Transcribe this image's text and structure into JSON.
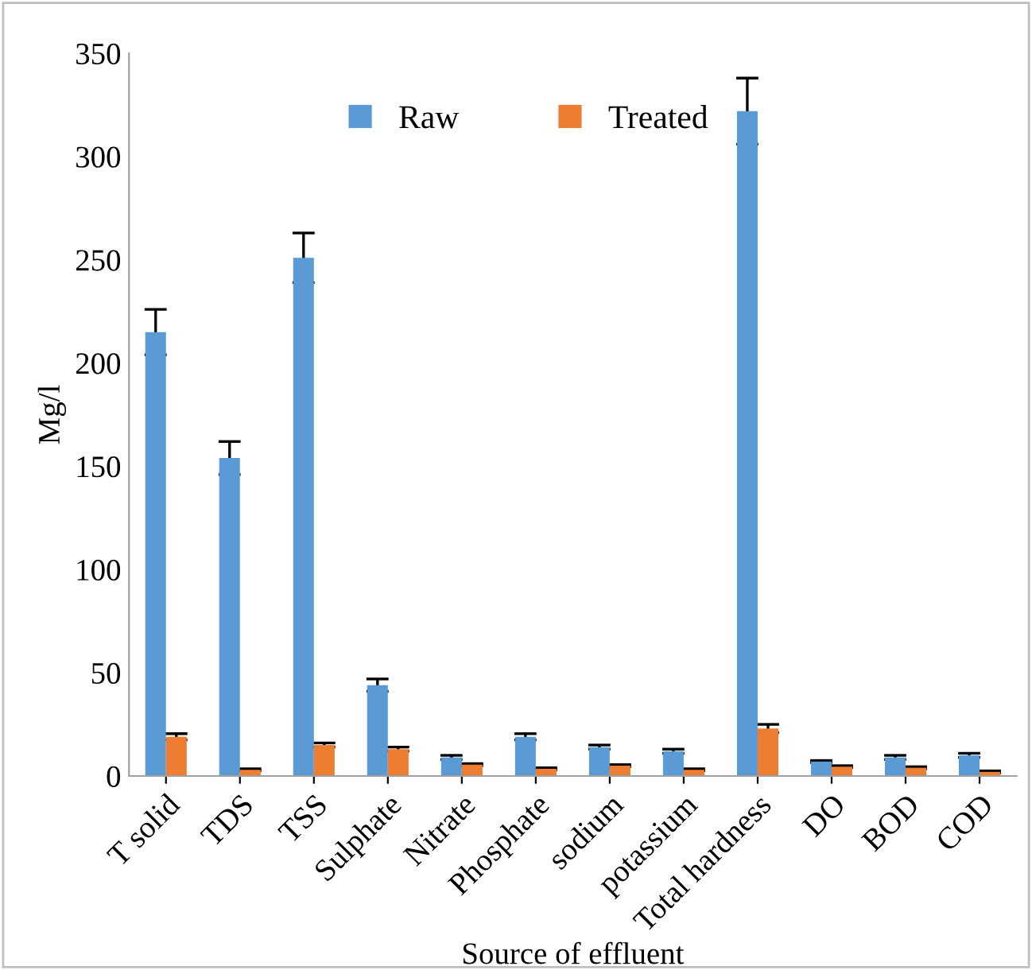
{
  "chart_data": {
    "type": "bar",
    "xlabel": "Source of effluent",
    "ylabel": "Mg/l",
    "categories": [
      "T solid",
      "TDS",
      "TSS",
      "Sulphate",
      "Nitrate",
      "Phosphate",
      "sodium",
      "potassium",
      "Total hardness",
      "DO",
      "BOD",
      "COD"
    ],
    "series": [
      {
        "name": "Raw",
        "color": "#5b9bd5",
        "values": [
          215,
          154,
          251,
          44,
          9,
          19,
          14,
          12,
          322,
          7,
          9,
          10
        ],
        "errors": [
          11,
          8,
          12,
          3,
          1,
          1.5,
          1,
          1,
          16,
          0.5,
          1,
          1
        ]
      },
      {
        "name": "Treated",
        "color": "#ed7d31",
        "values": [
          19,
          3,
          15,
          13,
          5.5,
          3.5,
          5,
          3,
          23,
          4.5,
          4,
          2
        ],
        "errors": [
          1.5,
          0.5,
          1,
          1,
          0.5,
          0.5,
          0.5,
          0.5,
          2,
          0.5,
          0.5,
          0.5
        ]
      }
    ],
    "ylim": [
      0,
      350
    ],
    "yticks": [
      0,
      50,
      100,
      150,
      200,
      250,
      300,
      350
    ],
    "grid": false,
    "legend": "top"
  }
}
